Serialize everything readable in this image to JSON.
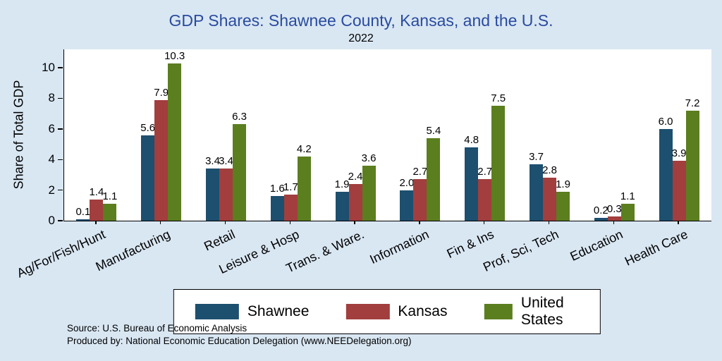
{
  "title": "GDP Shares: Shawnee County, Kansas, and the U.S.",
  "subtitle": "2022",
  "ylabel": "Share of Total GDP",
  "source_line1": "Source: U.S. Bureau of Economic Analysis",
  "source_line2": "Produced by: National Economic Education Delegation (www.NEEDelegation.org)",
  "colors": {
    "background": "#d9e7f3",
    "plot_background": "#ffffff",
    "title_text": "#2a4b9e",
    "shawnee": "#1d4f6f",
    "kansas": "#a23e3e",
    "united_states": "#5b7e1f"
  },
  "chart_data": {
    "type": "bar",
    "title": "GDP Shares: Shawnee County, Kansas, and the U.S.",
    "subtitle": "2022",
    "ylabel": "Share of Total GDP",
    "xlabel": "",
    "ylim": [
      0,
      11.2
    ],
    "yticks": [
      0,
      2,
      4,
      6,
      8,
      10
    ],
    "grid": false,
    "legend_position": "bottom",
    "categories": [
      "Ag/For/Fish/Hunt",
      "Manufacturing",
      "Retail",
      "Leisure & Hosp",
      "Trans. & Ware.",
      "Information",
      "Fin & Ins",
      "Prof, Sci, Tech",
      "Education",
      "Health Care"
    ],
    "series": [
      {
        "name": "Shawnee",
        "color": "#1d4f6f",
        "values": [
          0.1,
          5.6,
          3.4,
          1.6,
          1.9,
          2.0,
          4.8,
          3.7,
          0.2,
          6.0
        ]
      },
      {
        "name": "Kansas",
        "color": "#a23e3e",
        "values": [
          1.4,
          7.9,
          3.4,
          1.7,
          2.4,
          2.7,
          2.7,
          2.8,
          0.3,
          3.9
        ]
      },
      {
        "name": "United States",
        "color": "#5b7e1f",
        "values": [
          1.1,
          10.3,
          6.3,
          4.2,
          3.6,
          5.4,
          7.5,
          1.9,
          1.1,
          7.2
        ]
      }
    ]
  }
}
